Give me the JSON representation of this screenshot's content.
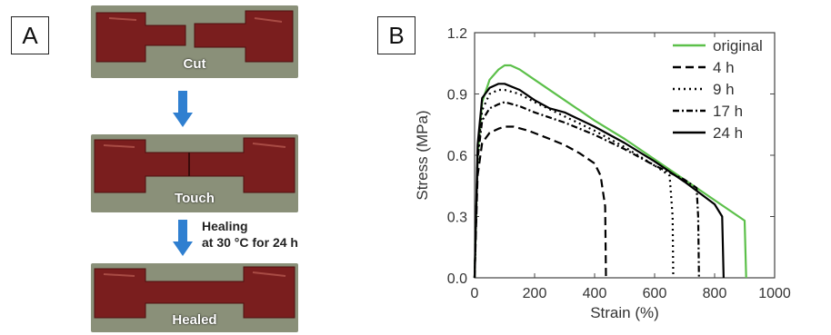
{
  "panels": {
    "a_label": "A",
    "b_label": "B"
  },
  "photos": {
    "cut_caption": "Cut",
    "touch_caption": "Touch",
    "healed_caption": "Healed",
    "healing_line1": "Healing",
    "healing_line2": "at 30 °C for 24 h"
  },
  "colors": {
    "arrow": "#2f7fd0",
    "specimen": "#7a1e1e",
    "photo_background": "#8a9079",
    "original_series": "#5cc04a",
    "other_series": "#000000"
  },
  "chart_data": {
    "type": "line",
    "title": "",
    "xlabel": "Strain (%)",
    "ylabel": "Stress (MPa)",
    "xlim": [
      0,
      1000
    ],
    "ylim": [
      0,
      1.2
    ],
    "xticks": [
      0,
      200,
      400,
      600,
      800,
      1000
    ],
    "yticks": [
      0.0,
      0.3,
      0.6,
      0.9,
      1.2
    ],
    "xtick_labels": [
      "0",
      "200",
      "400",
      "600",
      "800",
      "1000"
    ],
    "ytick_labels": [
      "0.0",
      "0.3",
      "0.6",
      "0.9",
      "1.2"
    ],
    "grid": false,
    "legend_position": "top-right",
    "series": [
      {
        "name": "original",
        "style": "solid",
        "color": "#5cc04a",
        "points": [
          [
            0,
            0
          ],
          [
            10,
            0.6
          ],
          [
            25,
            0.86
          ],
          [
            50,
            0.97
          ],
          [
            80,
            1.02
          ],
          [
            100,
            1.04
          ],
          [
            120,
            1.04
          ],
          [
            150,
            1.02
          ],
          [
            200,
            0.97
          ],
          [
            300,
            0.87
          ],
          [
            400,
            0.77
          ],
          [
            500,
            0.68
          ],
          [
            600,
            0.58
          ],
          [
            700,
            0.48
          ],
          [
            800,
            0.38
          ],
          [
            880,
            0.3
          ],
          [
            900,
            0.28
          ],
          [
            905,
            0.0
          ]
        ]
      },
      {
        "name": "4 h",
        "style": "dash",
        "color": "#000000",
        "points": [
          [
            0,
            0
          ],
          [
            10,
            0.5
          ],
          [
            25,
            0.66
          ],
          [
            50,
            0.71
          ],
          [
            80,
            0.73
          ],
          [
            100,
            0.74
          ],
          [
            130,
            0.74
          ],
          [
            180,
            0.72
          ],
          [
            250,
            0.68
          ],
          [
            300,
            0.65
          ],
          [
            350,
            0.61
          ],
          [
            400,
            0.56
          ],
          [
            420,
            0.5
          ],
          [
            435,
            0.35
          ],
          [
            438,
            0.0
          ]
        ]
      },
      {
        "name": "9 h",
        "style": "dot",
        "color": "#000000",
        "points": [
          [
            0,
            0
          ],
          [
            10,
            0.6
          ],
          [
            25,
            0.82
          ],
          [
            50,
            0.9
          ],
          [
            80,
            0.92
          ],
          [
            100,
            0.92
          ],
          [
            150,
            0.9
          ],
          [
            200,
            0.86
          ],
          [
            300,
            0.79
          ],
          [
            400,
            0.72
          ],
          [
            500,
            0.64
          ],
          [
            600,
            0.55
          ],
          [
            650,
            0.5
          ],
          [
            660,
            0.3
          ],
          [
            662,
            0.0
          ]
        ]
      },
      {
        "name": "17 h",
        "style": "dashdot",
        "color": "#000000",
        "points": [
          [
            0,
            0
          ],
          [
            10,
            0.58
          ],
          [
            25,
            0.77
          ],
          [
            50,
            0.83
          ],
          [
            80,
            0.85
          ],
          [
            100,
            0.86
          ],
          [
            150,
            0.84
          ],
          [
            200,
            0.81
          ],
          [
            300,
            0.76
          ],
          [
            400,
            0.7
          ],
          [
            500,
            0.63
          ],
          [
            600,
            0.55
          ],
          [
            700,
            0.48
          ],
          [
            740,
            0.44
          ],
          [
            745,
            0.3
          ],
          [
            748,
            0.0
          ]
        ]
      },
      {
        "name": "24 h",
        "style": "solid",
        "color": "#000000",
        "points": [
          [
            0,
            0
          ],
          [
            10,
            0.65
          ],
          [
            25,
            0.88
          ],
          [
            50,
            0.93
          ],
          [
            80,
            0.95
          ],
          [
            100,
            0.95
          ],
          [
            150,
            0.92
          ],
          [
            200,
            0.87
          ],
          [
            250,
            0.83
          ],
          [
            300,
            0.81
          ],
          [
            400,
            0.74
          ],
          [
            500,
            0.66
          ],
          [
            600,
            0.57
          ],
          [
            700,
            0.47
          ],
          [
            800,
            0.36
          ],
          [
            825,
            0.3
          ],
          [
            830,
            0.0
          ]
        ]
      }
    ]
  }
}
